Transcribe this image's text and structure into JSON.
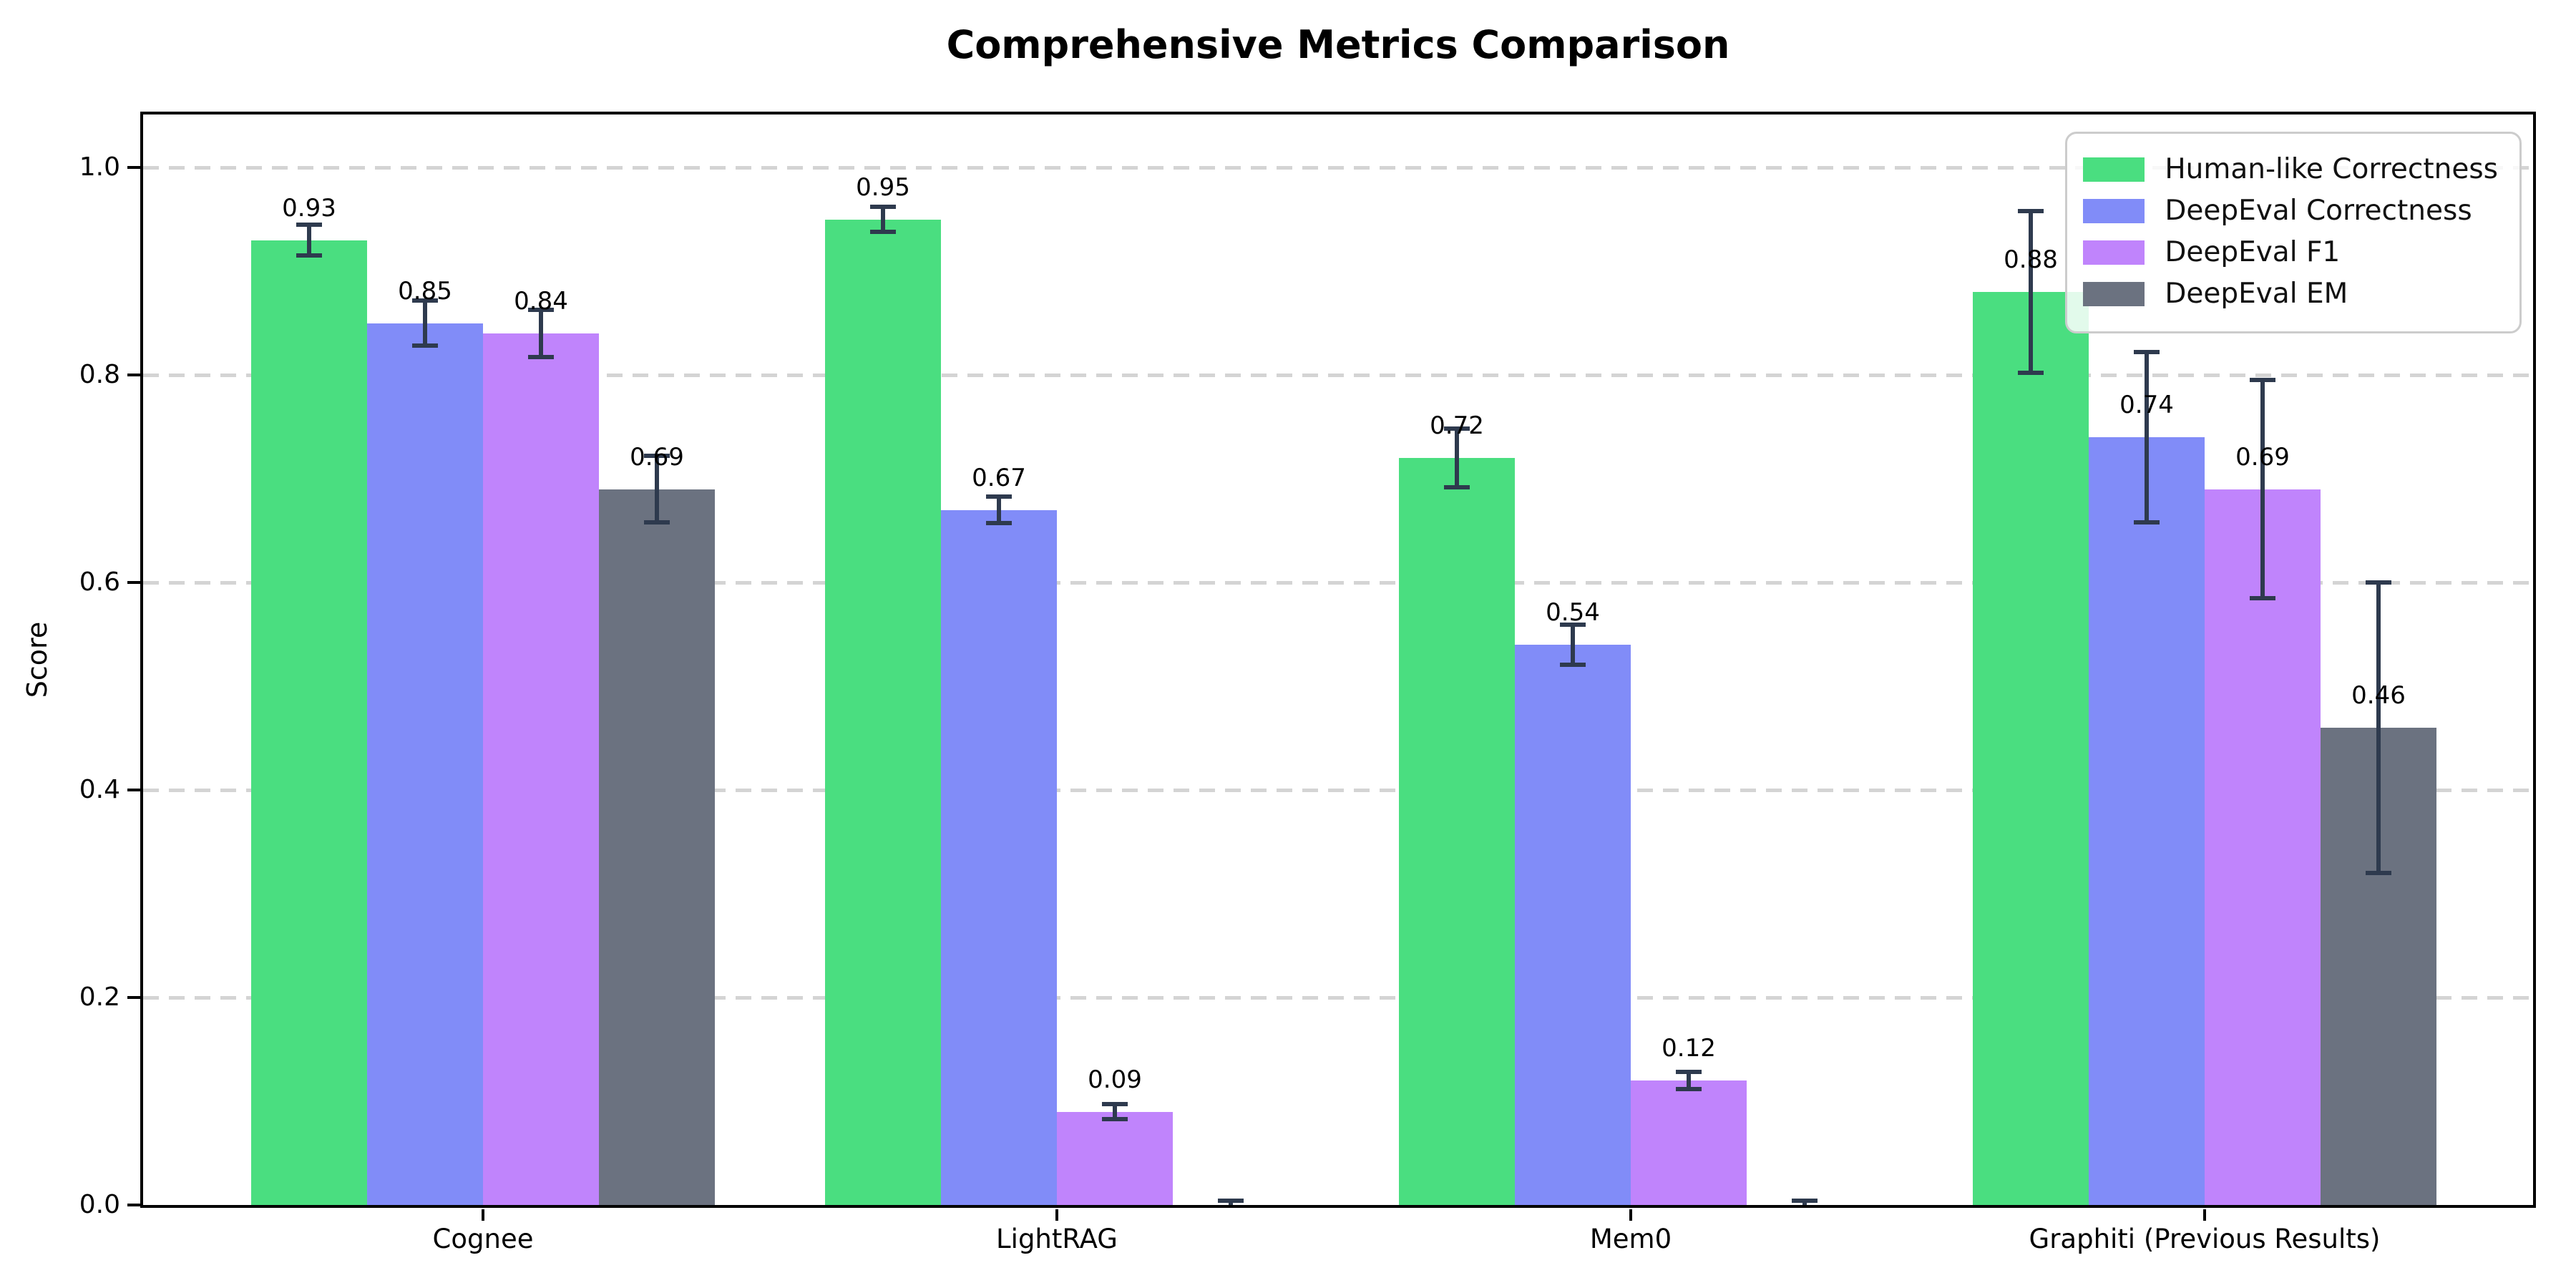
{
  "title": "Comprehensive Metrics Comparison",
  "colors": {
    "background": "#ffffff",
    "spine": "#000000",
    "gridline": "#d4d4d4",
    "errorbar": "#2e3a4e",
    "human_like": "#4ade80",
    "deepeval_correctness": "#818cf8",
    "deepeval_f1": "#c084fc",
    "deepeval_em": "#6b7280"
  },
  "chart_data": {
    "type": "bar",
    "title": "Comprehensive Metrics Comparison",
    "xlabel": "",
    "ylabel": "Score",
    "categories": [
      "Cognee",
      "LightRAG",
      "Mem0",
      "Graphiti (Previous Results)"
    ],
    "series": [
      {
        "name": "Human-like Correctness",
        "color": "#4ade80",
        "values": [
          0.93,
          0.95,
          0.72,
          0.88
        ],
        "errors": [
          0.015,
          0.012,
          0.028,
          0.078
        ],
        "labels": [
          "0.93",
          "0.95",
          "0.72",
          "0.88"
        ]
      },
      {
        "name": "DeepEval Correctness",
        "color": "#818cf8",
        "values": [
          0.85,
          0.67,
          0.54,
          0.74
        ],
        "errors": [
          0.022,
          0.013,
          0.019,
          0.082
        ],
        "labels": [
          "0.85",
          "0.67",
          "0.54",
          "0.74"
        ]
      },
      {
        "name": "DeepEval F1",
        "color": "#c084fc",
        "values": [
          0.84,
          0.09,
          0.12,
          0.69
        ],
        "errors": [
          0.023,
          0.007,
          0.008,
          0.105
        ],
        "labels": [
          "0.84",
          "0.09",
          "0.12",
          "0.69"
        ]
      },
      {
        "name": "DeepEval EM",
        "color": "#6b7280",
        "values": [
          0.69,
          0.0,
          0.0,
          0.46
        ],
        "errors": [
          0.032,
          0.004,
          0.004,
          0.14
        ],
        "labels": [
          "0.69",
          null,
          null,
          "0.46"
        ]
      }
    ],
    "yticks": [
      0.0,
      0.2,
      0.4,
      0.6,
      0.8,
      1.0
    ],
    "ytick_labels": [
      "0.0",
      "0.2",
      "0.4",
      "0.6",
      "0.8",
      "1.0"
    ],
    "ylim": [
      0,
      1.05
    ],
    "grid": "horizontal-dashed",
    "legend_position": "upper right",
    "error_bars": true
  }
}
